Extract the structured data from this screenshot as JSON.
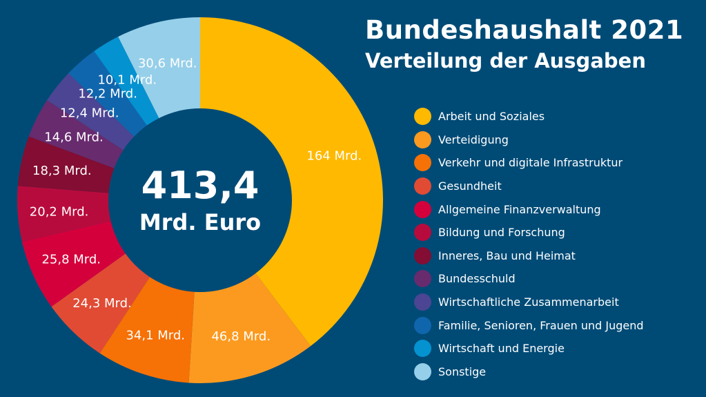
{
  "chart_data": {
    "type": "pie",
    "title": "Bundeshaushalt 2021",
    "subtitle": "Verteilung der Ausgaben",
    "center_value": "413,4",
    "center_unit": "Mrd. Euro",
    "slices": [
      {
        "label": "Arbeit und Soziales",
        "value": 164,
        "value_label": "164 Mrd.",
        "color": "#ffb900"
      },
      {
        "label": "Verteidigung",
        "value": 46.8,
        "value_label": "46,8 Mrd.",
        "color": "#fc9a1f"
      },
      {
        "label": "Verkehr und digitale Infrastruktur",
        "value": 34.1,
        "value_label": "34,1 Mrd.",
        "color": "#f67106"
      },
      {
        "label": "Gesundheit",
        "value": 24.3,
        "value_label": "24,3 Mrd.",
        "color": "#e14b34"
      },
      {
        "label": "Allgemeine Finanzverwaltung",
        "value": 25.8,
        "value_label": "25,8 Mrd.",
        "color": "#d4003c"
      },
      {
        "label": "Bildung und Forschung",
        "value": 20.2,
        "value_label": "20,2 Mrd.",
        "color": "#b80b3d"
      },
      {
        "label": "Inneres, Bau und Heimat",
        "value": 18.3,
        "value_label": "18,3 Mrd.",
        "color": "#830d33"
      },
      {
        "label": "Bundesschuld",
        "value": 14.6,
        "value_label": "14,6 Mrd.",
        "color": "#682b6e"
      },
      {
        "label": "Wirtschaftliche Zusammenarbeit",
        "value": 12.4,
        "value_label": "12,4 Mrd.",
        "color": "#4b4593"
      },
      {
        "label": "Familie, Senioren, Frauen und Jugend",
        "value": 12.2,
        "value_label": "12,2 Mrd.",
        "color": "#1066ad"
      },
      {
        "label": "Wirtschaft und Energie",
        "value": 10.1,
        "value_label": "10,1 Mrd.",
        "color": "#0592d0"
      },
      {
        "label": "Sonstige",
        "value": 30.6,
        "value_label": "30,6 Mrd.",
        "color": "#96cfe9"
      }
    ]
  }
}
